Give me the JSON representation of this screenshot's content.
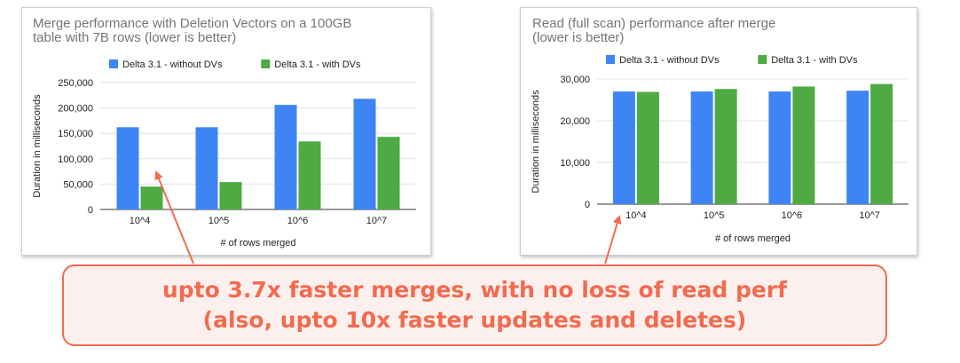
{
  "colors": {
    "without_dvs": "#3d85f5",
    "with_dvs": "#4eaa43",
    "grid": "#e3e3e3",
    "axis_text": "#222222",
    "title_text": "#757575",
    "accent": "#f26b4f"
  },
  "chart_data": [
    {
      "type": "bar",
      "title_lines": [
        "Merge performance with Deletion Vectors on a 100GB",
        "table with 7B rows (lower is better)"
      ],
      "xlabel": "# of rows merged",
      "ylabel": "Duration in milliseconds",
      "ylim": [
        0,
        250000
      ],
      "yticks": [
        0,
        50000,
        100000,
        150000,
        200000,
        250000
      ],
      "ytick_labels": [
        "0",
        "50,000",
        "100,000",
        "150,000",
        "200,000",
        "250,000"
      ],
      "categories": [
        "10^4",
        "10^5",
        "10^6",
        "10^7"
      ],
      "legend_position": "top",
      "grid": true,
      "series": [
        {
          "name": "Delta 3.1 - without DVs",
          "color": "#3d85f5",
          "values": [
            162000,
            162000,
            206000,
            218000
          ]
        },
        {
          "name": "Delta 3.1 - with DVs",
          "color": "#4eaa43",
          "values": [
            45000,
            54000,
            134000,
            143000
          ]
        }
      ]
    },
    {
      "type": "bar",
      "title_lines": [
        "Read (full scan) performance after merge",
        "(lower is better)"
      ],
      "xlabel": "# of rows merged",
      "ylabel": "Duration in milliseconds",
      "ylim": [
        0,
        30000
      ],
      "yticks": [
        0,
        10000,
        20000,
        30000
      ],
      "ytick_labels": [
        "0",
        "10,000",
        "20,000",
        "30,000"
      ],
      "categories": [
        "10^4",
        "10^5",
        "10^6",
        "10^7"
      ],
      "legend_position": "top",
      "grid": true,
      "series": [
        {
          "name": "Delta 3.1 - without DVs",
          "color": "#3d85f5",
          "values": [
            27000,
            27000,
            27000,
            27200
          ]
        },
        {
          "name": "Delta 3.1 - with DVs",
          "color": "#4eaa43",
          "values": [
            26900,
            27600,
            28200,
            28800
          ]
        }
      ]
    }
  ],
  "callout": {
    "line1": "upto 3.7x faster merges, with no loss of read perf",
    "line2": "(also, upto 10x faster updates and deletes)"
  }
}
